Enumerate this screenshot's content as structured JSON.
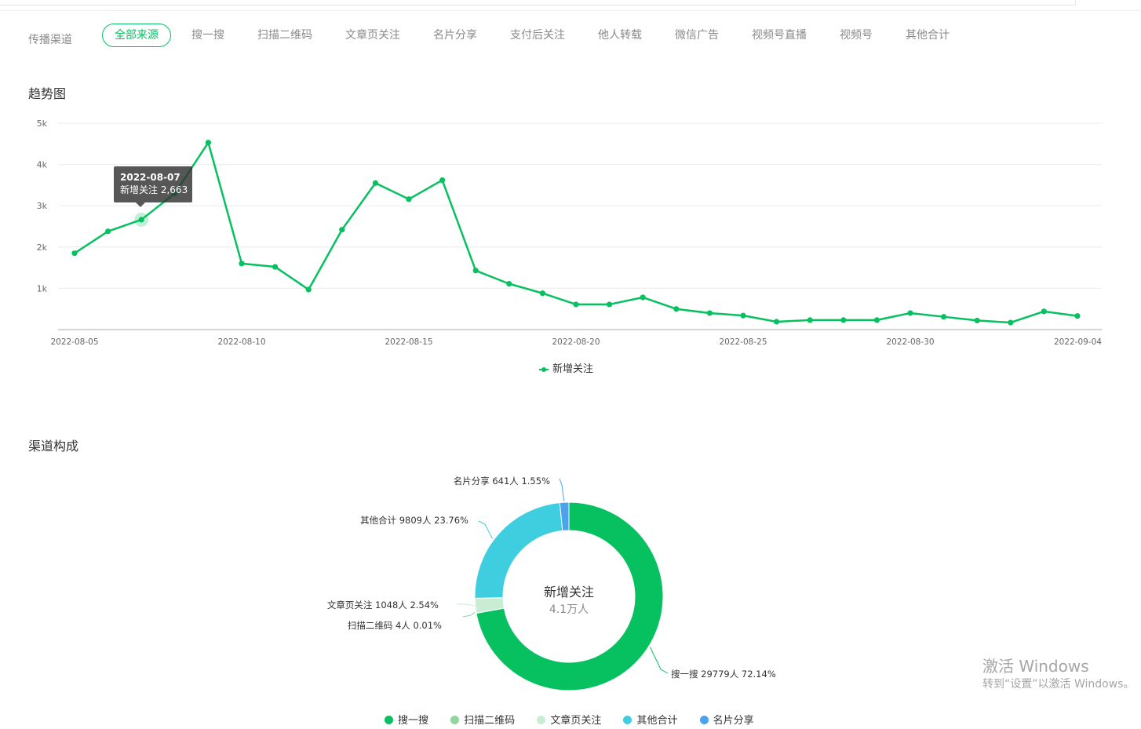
{
  "filter": {
    "label": "传播渠道",
    "tabs": [
      "全部来源",
      "搜一搜",
      "扫描二维码",
      "文章页关注",
      "名片分享",
      "支付后关注",
      "他人转载",
      "微信广告",
      "视频号直播",
      "视频号",
      "其他合计"
    ],
    "active_index": 0
  },
  "trend_section": {
    "title": "趋势图"
  },
  "composition_section": {
    "title": "渠道构成"
  },
  "tooltip": {
    "date": "2022-08-07",
    "label": "新增关注",
    "value": "2,663"
  },
  "watermark": {
    "line1": "激活 Windows",
    "line2": "转到“设置”以激活 Windows。"
  },
  "colors": {
    "accent": "#07c160",
    "cyan": "#3ecee0",
    "light_green": "#91d5a0",
    "pale_green": "#c8edd2",
    "blue": "#4aa3ec"
  },
  "chart_data": [
    {
      "type": "line",
      "title": "",
      "xlabel": "",
      "ylabel": "",
      "ylim": [
        0,
        5000
      ],
      "yticks": [
        "1k",
        "2k",
        "3k",
        "4k",
        "5k"
      ],
      "ytick_values": [
        1000,
        2000,
        3000,
        4000,
        5000
      ],
      "xtick_labels": [
        "2022-08-05",
        "2022-08-10",
        "2022-08-15",
        "2022-08-20",
        "2022-08-25",
        "2022-08-30",
        "2022-09-04"
      ],
      "xtick_indices": [
        0,
        5,
        10,
        15,
        20,
        25,
        30
      ],
      "x": [
        "2022-08-05",
        "2022-08-06",
        "2022-08-07",
        "2022-08-08",
        "2022-08-09",
        "2022-08-10",
        "2022-08-11",
        "2022-08-12",
        "2022-08-13",
        "2022-08-14",
        "2022-08-15",
        "2022-08-16",
        "2022-08-17",
        "2022-08-18",
        "2022-08-19",
        "2022-08-20",
        "2022-08-21",
        "2022-08-22",
        "2022-08-23",
        "2022-08-24",
        "2022-08-25",
        "2022-08-26",
        "2022-08-27",
        "2022-08-28",
        "2022-08-29",
        "2022-08-30",
        "2022-08-31",
        "2022-09-01",
        "2022-09-02",
        "2022-09-03",
        "2022-09-04"
      ],
      "series": [
        {
          "name": "新增关注",
          "values": [
            1850,
            2380,
            2663,
            3300,
            4530,
            1600,
            1520,
            970,
            2420,
            3550,
            3160,
            3620,
            1430,
            1110,
            880,
            610,
            610,
            780,
            500,
            400,
            340,
            190,
            230,
            230,
            230,
            400,
            310,
            220,
            170,
            440,
            330
          ]
        }
      ],
      "highlight_index": 2,
      "grid": true,
      "legend": "bottom"
    },
    {
      "type": "pie",
      "title": "",
      "center_title": "新增关注",
      "center_subtitle": "4.1万人",
      "slices": [
        {
          "name": "搜一搜",
          "value": 29779,
          "percent": 72.14,
          "label": "搜一搜 29779人 72.14%",
          "color": "#07c160"
        },
        {
          "name": "扫描二维码",
          "value": 4,
          "percent": 0.01,
          "label": "扫描二维码 4人 0.01%",
          "color": "#91d5a0"
        },
        {
          "name": "文章页关注",
          "value": 1048,
          "percent": 2.54,
          "label": "文章页关注 1048人 2.54%",
          "color": "#c8edd2"
        },
        {
          "name": "其他合计",
          "value": 9809,
          "percent": 23.76,
          "label": "其他合计 9809人 23.76%",
          "color": "#3ecee0"
        },
        {
          "name": "名片分享",
          "value": 641,
          "percent": 1.55,
          "label": "名片分享 641人 1.55%",
          "color": "#4aa3ec"
        }
      ],
      "legend": "bottom"
    }
  ]
}
